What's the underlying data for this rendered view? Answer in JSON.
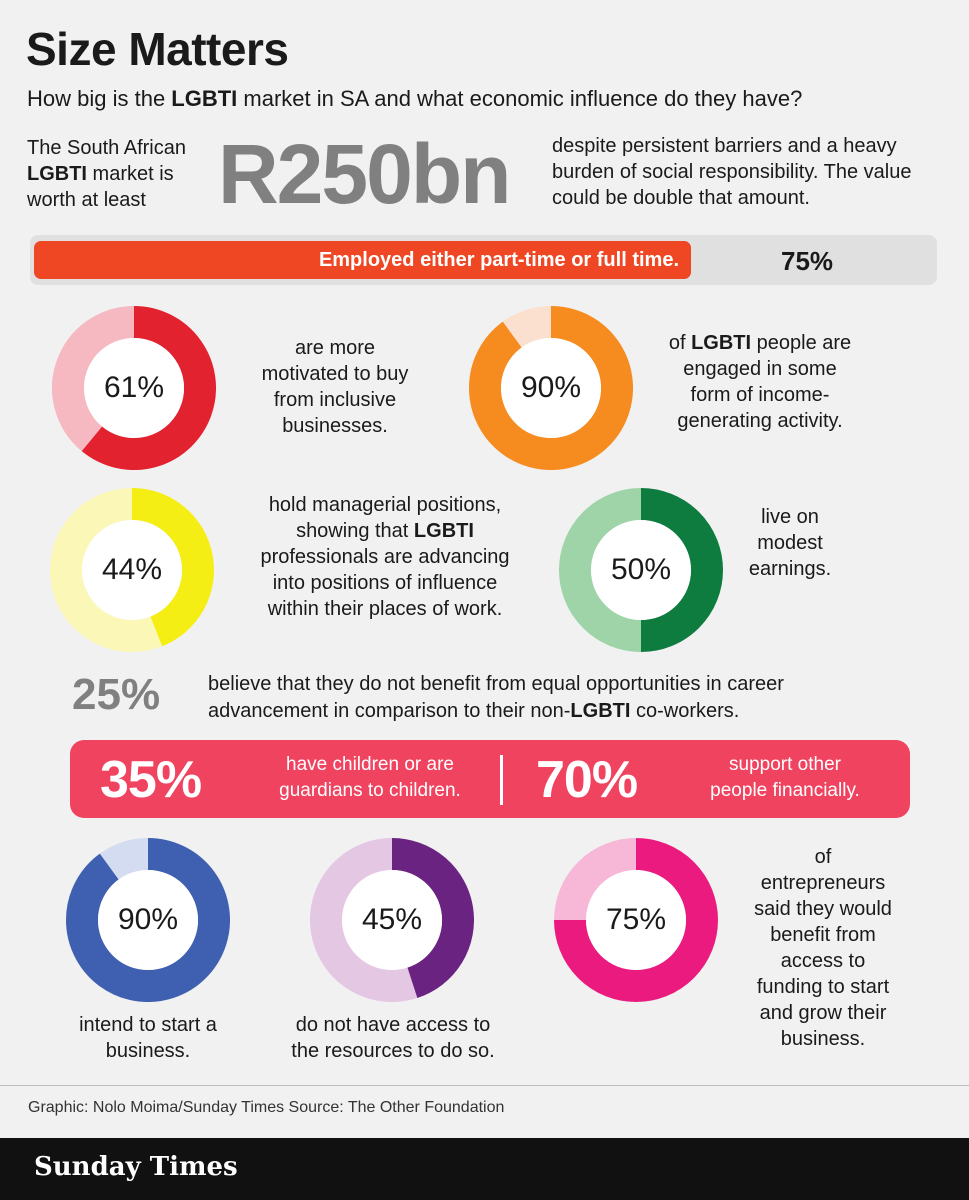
{
  "header": {
    "title": "Size Matters",
    "subtitle_pre": "How big is the ",
    "subtitle_bold": "LGBTI",
    "subtitle_post": " market in SA and what economic influence do they have?"
  },
  "intro": {
    "left_line1": "The South African",
    "left_bold": "LGBTI",
    "left_line2_rest": " market is",
    "left_line3": "worth at least",
    "value": "R250bn",
    "right_text": "despite persistent barriers and a heavy burden of social responsibility. The value could be double that amount."
  },
  "employment": {
    "label": "Employed either part-time or full time.",
    "pct_text": "75%",
    "value": 75,
    "color": "#ef4623",
    "track_color": "#e0e0e0"
  },
  "stats": {
    "s61": {
      "pct_text": "61%",
      "value": 61,
      "color": "#e3222f",
      "rest_color": "#f6b8c1",
      "text": [
        "are more",
        "motivated to buy",
        "from inclusive",
        "businesses."
      ]
    },
    "s90a": {
      "pct_text": "90%",
      "value": 90,
      "color": "#f68b1f",
      "rest_color": "#fce0cf",
      "text_pre": "of ",
      "text_bold": "LGBTI",
      "text_post": " people are",
      "text_rest": [
        "engaged in some",
        "form of income-",
        "generating activity."
      ]
    },
    "s44": {
      "pct_text": "44%",
      "value": 44,
      "color": "#f5ee14",
      "rest_color": "#fbf7b6",
      "line1": "hold managerial positions,",
      "line2_pre": "showing that ",
      "line2_bold": "LGBTI",
      "text_rest": [
        "professionals are advancing",
        "into positions of influence",
        "within their places of work."
      ]
    },
    "s50": {
      "pct_text": "50%",
      "value": 50,
      "color": "#0e7c3e",
      "rest_color": "#9ed4a8",
      "text": [
        "live on",
        "modest",
        "earnings."
      ]
    },
    "s25": {
      "pct_text": "25%",
      "line1": "believe  that they do not benefit from equal  opportunities in career",
      "line2_pre": "advancement in comparison to their non-",
      "line2_bold": "LGBTI",
      "line2_post": " co-workers."
    },
    "s35": {
      "pct_text": "35%",
      "text": [
        "have children or are",
        "guardians to children."
      ]
    },
    "s70": {
      "pct_text": "70%",
      "text": [
        "support other",
        "people financially."
      ]
    },
    "s90b": {
      "pct_text": "90%",
      "value": 90,
      "color": "#3f5fb0",
      "rest_color": "#d4dcf1",
      "text": [
        "intend to start a",
        "business."
      ]
    },
    "s45": {
      "pct_text": "45%",
      "value": 45,
      "color": "#6a2381",
      "rest_color": "#e4c7e2",
      "text": [
        "do not have access to",
        "the resources to do so."
      ]
    },
    "s75": {
      "pct_text": "75%",
      "value": 75,
      "color": "#ea1a7f",
      "rest_color": "#f6b8d6",
      "text": [
        "of",
        "entrepreneurs",
        "said they would",
        "benefit from",
        "access to",
        "funding to start",
        "and grow their",
        "business."
      ]
    }
  },
  "credit": "Graphic: Nolo Moima/Sunday Times Source: The Other Foundation",
  "brand": "Sunday Times",
  "chart_data": {
    "type": "pie",
    "categories": [
      "Employed either part-time or full time",
      "more motivated to buy from inclusive businesses",
      "engaged in some form of income-generating activity",
      "hold managerial positions",
      "live on modest earnings",
      "do not benefit from equal opportunities",
      "have children or are guardians to children",
      "support other people financially",
      "intend to start a business",
      "do not have access to the resources",
      "entrepreneurs who would benefit from access to funding"
    ],
    "values": [
      75,
      61,
      90,
      44,
      50,
      25,
      35,
      70,
      90,
      45,
      75
    ],
    "title": "Size Matters"
  }
}
